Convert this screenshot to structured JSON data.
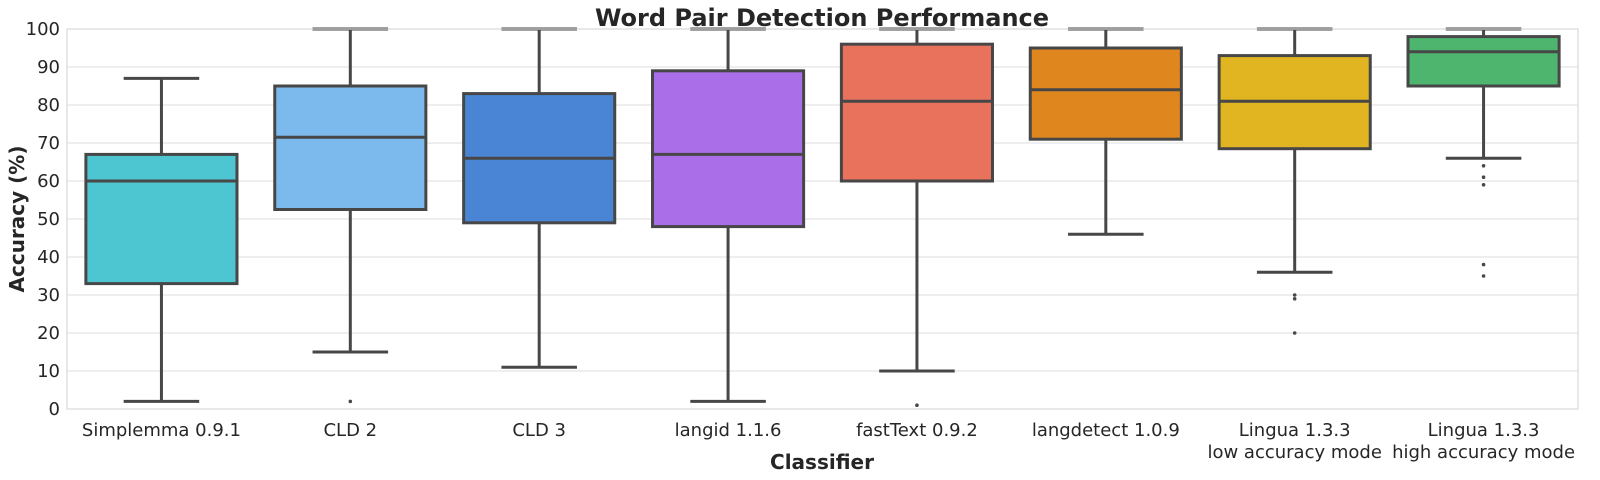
{
  "chart_data": {
    "type": "box",
    "title": "Word Pair Detection Performance",
    "xlabel": "Classifier",
    "ylabel": "Accuracy (%)",
    "ylim": [
      0,
      100
    ],
    "yticks": [
      0,
      10,
      20,
      30,
      40,
      50,
      60,
      70,
      80,
      90,
      100
    ],
    "grid": true,
    "series": [
      {
        "name": "Simplemma 0.9.1",
        "label_lines": [
          "Simplemma 0.9.1"
        ],
        "color": "#4ec6d1",
        "whisker_low": 2,
        "q1": 33,
        "median": 60,
        "q3": 67,
        "whisker_high": 87,
        "outliers": []
      },
      {
        "name": "CLD 2",
        "label_lines": [
          "CLD 2"
        ],
        "color": "#7cb9ed",
        "whisker_low": 15,
        "q1": 52.5,
        "median": 71.5,
        "q3": 85,
        "whisker_high": 100,
        "outliers": [
          2
        ]
      },
      {
        "name": "CLD 3",
        "label_lines": [
          "CLD 3"
        ],
        "color": "#4a84d5",
        "whisker_low": 11,
        "q1": 49,
        "median": 66,
        "q3": 83,
        "whisker_high": 100,
        "outliers": []
      },
      {
        "name": "langid 1.1.6",
        "label_lines": [
          "langid 1.1.6"
        ],
        "color": "#ab6ee9",
        "whisker_low": 2,
        "q1": 48,
        "median": 67,
        "q3": 89,
        "whisker_high": 100,
        "outliers": []
      },
      {
        "name": "fastText 0.9.2",
        "label_lines": [
          "fastText 0.9.2"
        ],
        "color": "#e9725d",
        "whisker_low": 10,
        "q1": 60,
        "median": 81,
        "q3": 96,
        "whisker_high": 100,
        "outliers": [
          1
        ]
      },
      {
        "name": "langdetect 1.0.9",
        "label_lines": [
          "langdetect 1.0.9"
        ],
        "color": "#e0861f",
        "whisker_low": 46,
        "q1": 71,
        "median": 84,
        "q3": 95,
        "whisker_high": 100,
        "outliers": []
      },
      {
        "name": "Lingua 1.3.3 low accuracy mode",
        "label_lines": [
          "Lingua 1.3.3",
          "low accuracy mode"
        ],
        "color": "#e0b521",
        "whisker_low": 36,
        "q1": 68.5,
        "median": 81,
        "q3": 93,
        "whisker_high": 100,
        "outliers": [
          30,
          29,
          20
        ]
      },
      {
        "name": "Lingua 1.3.3 high accuracy mode",
        "label_lines": [
          "Lingua 1.3.3",
          "high accuracy mode"
        ],
        "color": "#4db56e",
        "whisker_low": 66,
        "q1": 85,
        "median": 94,
        "q3": 98,
        "whisker_high": 100,
        "outliers": [
          64,
          61,
          59,
          38,
          35
        ]
      }
    ]
  }
}
